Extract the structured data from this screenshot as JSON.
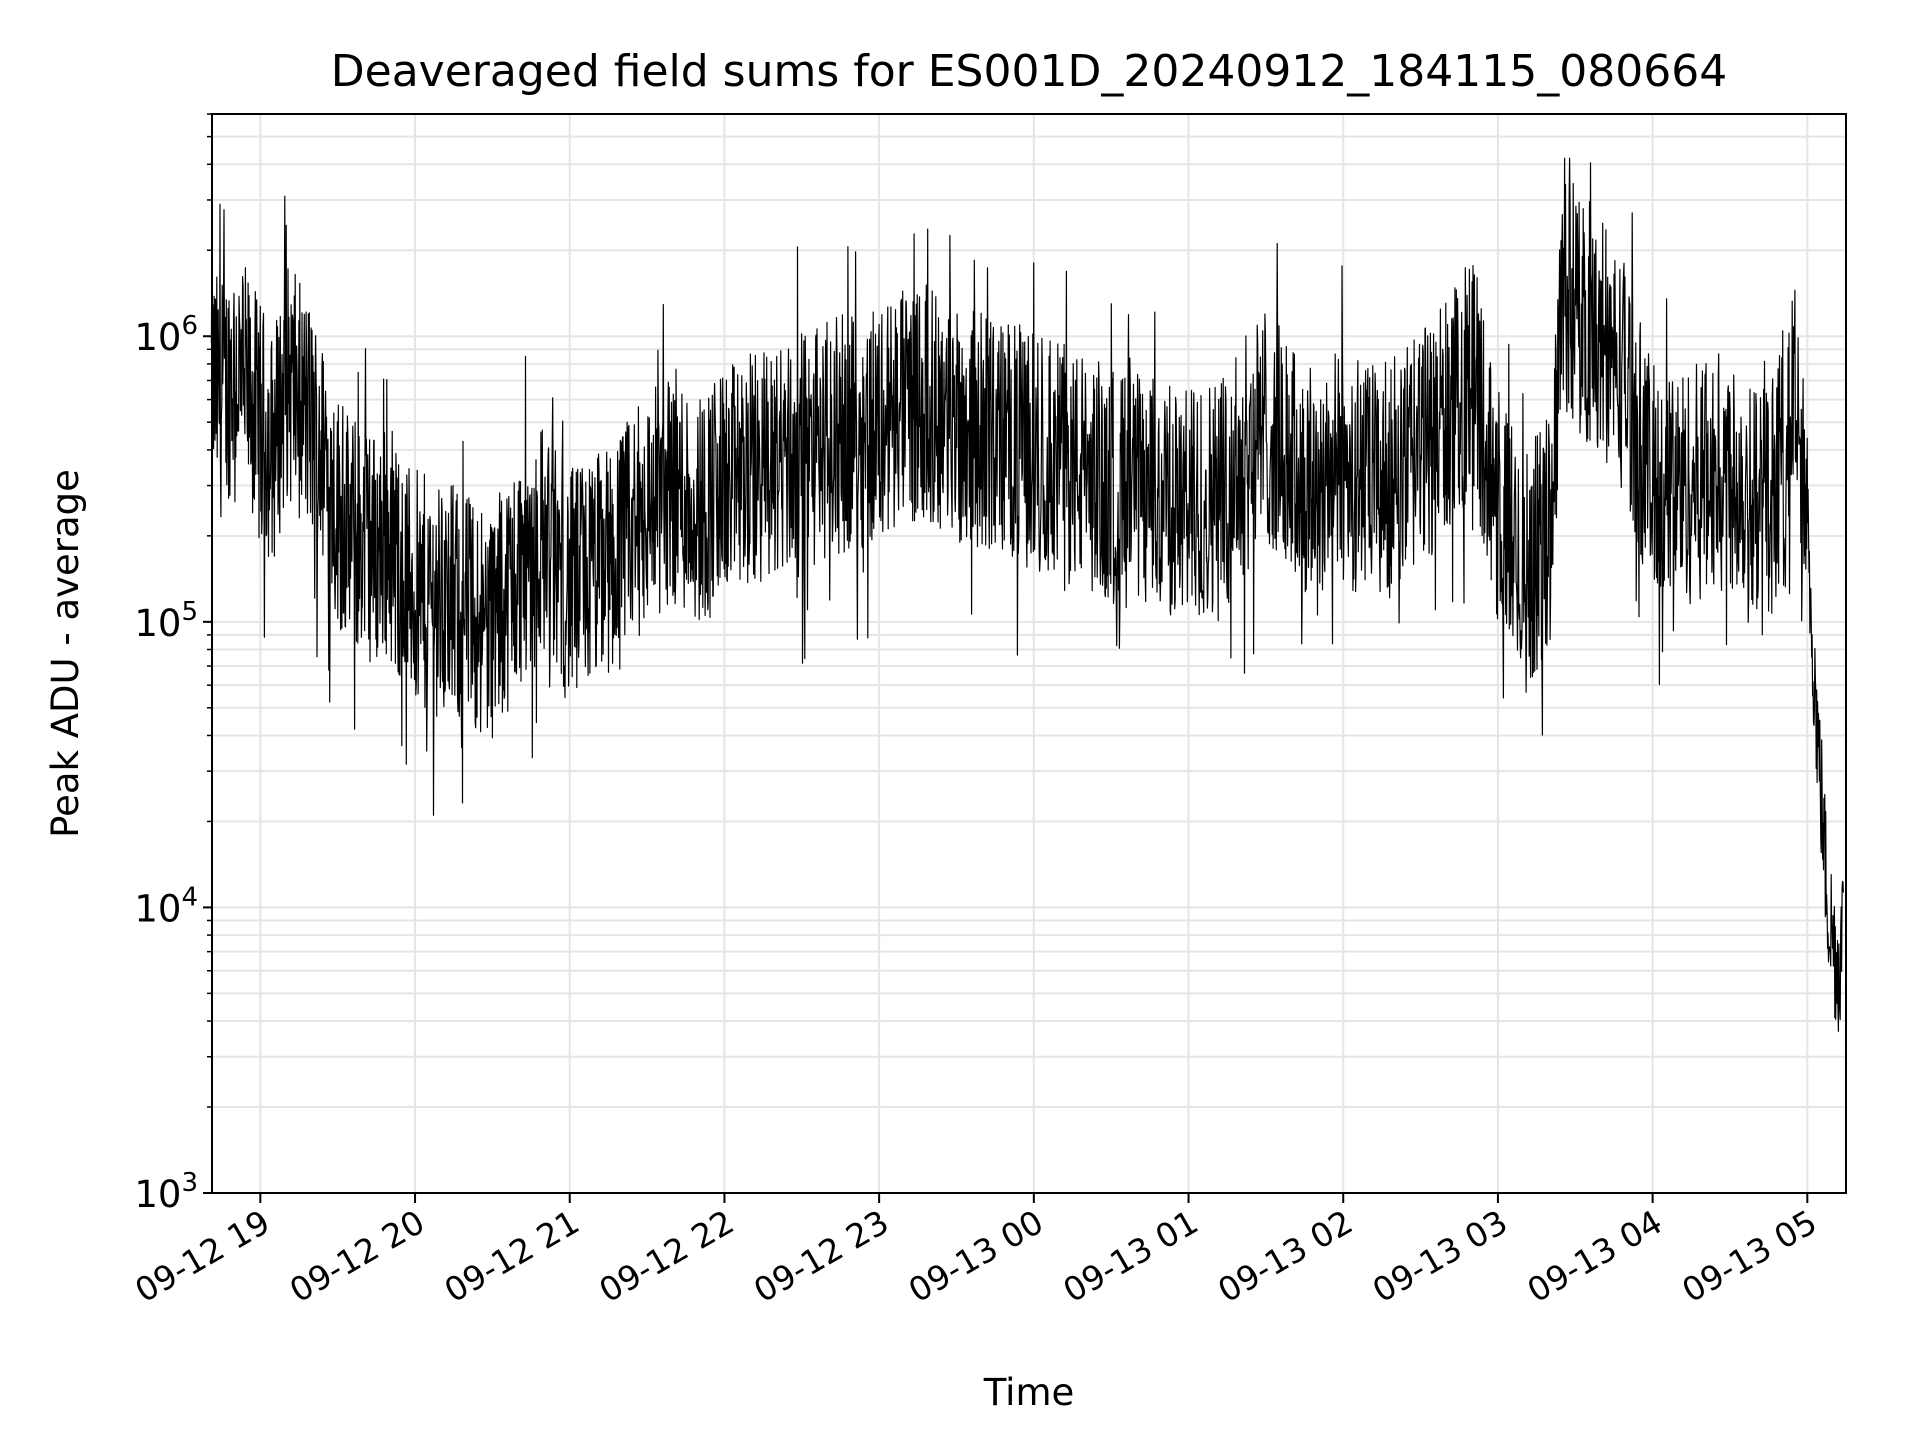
{
  "chart_data": {
    "type": "line",
    "title": "Deaveraged field sums for ES001D_20240912_184115_080664",
    "xlabel": "Time",
    "ylabel": "Peak ADU - average",
    "y_scale": "log",
    "ylim": [
      1000,
      6000000
    ],
    "xlim": [
      "2024-09-12 18:41:15",
      "2024-09-13 05:15:00"
    ],
    "x_tick_labels": [
      "09-12 19",
      "09-12 20",
      "09-12 21",
      "09-12 22",
      "09-12 23",
      "09-13 00",
      "09-13 01",
      "09-13 02",
      "09-13 03",
      "09-13 04",
      "09-13 05"
    ],
    "y_tick_labels": [
      {
        "base": "10",
        "exp": "3"
      },
      {
        "base": "10",
        "exp": "4"
      },
      {
        "base": "10",
        "exp": "5"
      },
      {
        "base": "10",
        "exp": "6"
      }
    ],
    "grid": true,
    "line_color": "#000000",
    "grid_color": "#e5e5e5",
    "series": [
      {
        "x": [
          "2024-09-12 18:41",
          "2024-09-12 18:45",
          "2024-09-12 18:50",
          "2024-09-12 18:55",
          "2024-09-12 19:00",
          "2024-09-12 19:05",
          "2024-09-12 19:10",
          "2024-09-12 19:15",
          "2024-09-12 19:20",
          "2024-09-12 19:25",
          "2024-09-12 19:30",
          "2024-09-12 19:35",
          "2024-09-12 19:40",
          "2024-09-12 19:45",
          "2024-09-12 19:50",
          "2024-09-12 19:55",
          "2024-09-12 20:00",
          "2024-09-12 20:10",
          "2024-09-12 20:20",
          "2024-09-12 20:30",
          "2024-09-12 20:40",
          "2024-09-12 20:50",
          "2024-09-12 21:00",
          "2024-09-12 21:10",
          "2024-09-12 21:20",
          "2024-09-12 21:30",
          "2024-09-12 21:40",
          "2024-09-12 21:50",
          "2024-09-12 22:00",
          "2024-09-12 22:15",
          "2024-09-12 22:30",
          "2024-09-12 22:45",
          "2024-09-12 23:00",
          "2024-09-12 23:15",
          "2024-09-12 23:30",
          "2024-09-12 23:45",
          "2024-09-13 00:00",
          "2024-09-13 00:15",
          "2024-09-13 00:30",
          "2024-09-13 00:45",
          "2024-09-13 01:00",
          "2024-09-13 01:15",
          "2024-09-13 01:30",
          "2024-09-13 01:45",
          "2024-09-13 02:00",
          "2024-09-13 02:15",
          "2024-09-13 02:30",
          "2024-09-13 02:45",
          "2024-09-13 02:50",
          "2024-09-13 03:00",
          "2024-09-13 03:10",
          "2024-09-13 03:20",
          "2024-09-13 03:25",
          "2024-09-13 03:30",
          "2024-09-13 03:40",
          "2024-09-13 03:50",
          "2024-09-13 04:00",
          "2024-09-13 04:15",
          "2024-09-13 04:30",
          "2024-09-13 04:45",
          "2024-09-13 04:55",
          "2024-09-13 05:00",
          "2024-09-13 05:04",
          "2024-09-13 05:08",
          "2024-09-13 05:12",
          "2024-09-13 05:14"
        ],
        "y": [
          700000,
          600000,
          800000,
          650000,
          500000,
          400000,
          700000,
          600000,
          500000,
          350000,
          250000,
          200000,
          200000,
          180000,
          200000,
          150000,
          130000,
          120000,
          110000,
          100000,
          150000,
          200000,
          130000,
          150000,
          180000,
          250000,
          300000,
          250000,
          300000,
          350000,
          400000,
          450000,
          500000,
          600000,
          500000,
          450000,
          400000,
          350000,
          300000,
          280000,
          250000,
          300000,
          500000,
          300000,
          350000,
          300000,
          400000,
          600000,
          800000,
          250000,
          150000,
          200000,
          1500000,
          1200000,
          1000000,
          700000,
          300000,
          300000,
          350000,
          250000,
          600000,
          200000,
          40000,
          10000,
          6000,
          9000
        ]
      }
    ]
  }
}
